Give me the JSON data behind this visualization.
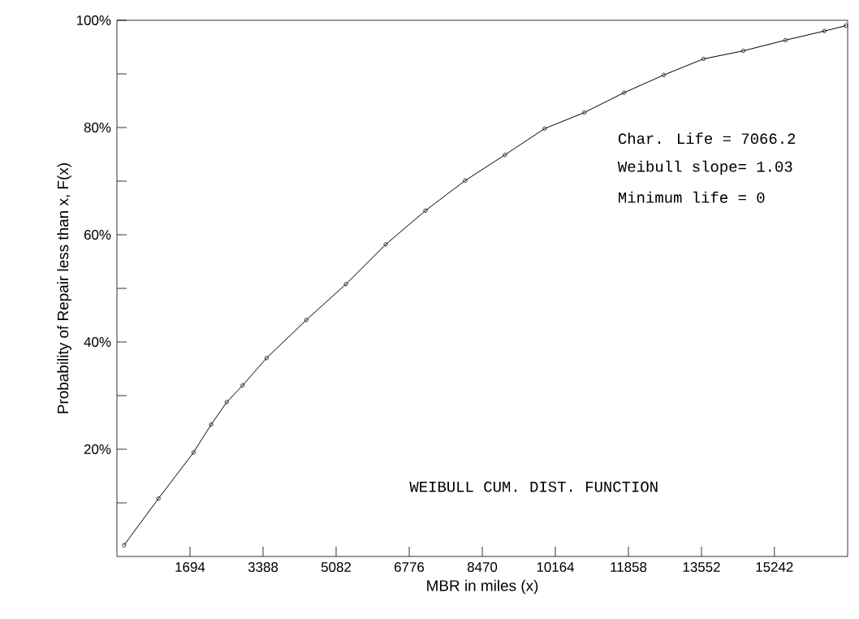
{
  "chart_data": {
    "type": "line",
    "xlabel": "MBR in miles  (x)",
    "ylabel": "Probability of Repair  less than x, F(x)",
    "annotations": [
      "Char. Life   =  7066.2",
      "Weibull slope=  1.03",
      "Minimum life =  0",
      "WEIBULL CUM. DIST.  FUNCTION"
    ],
    "x": [
      165,
      963,
      1777,
      2183,
      2548,
      2914,
      3469,
      4390,
      5310,
      6232,
      7152,
      8072,
      8995,
      9915,
      10836,
      11757,
      12677,
      13599,
      14519,
      15500,
      16400,
      16900
    ],
    "series": [
      {
        "color": "#000000",
        "values": [
          2.1,
          10.8,
          19.4,
          24.6,
          28.8,
          31.9,
          37.0,
          44.1,
          50.8,
          58.2,
          64.5,
          70.1,
          74.9,
          79.8,
          82.8,
          86.5,
          89.8,
          92.8,
          94.3,
          96.3,
          98.0,
          99.0
        ]
      }
    ],
    "xlim": [
      0,
      16940
    ],
    "ylim": [
      0,
      100
    ],
    "xticks": [
      1694,
      3388,
      5082,
      6776,
      8470,
      10164,
      11858,
      13552,
      15242
    ],
    "yticks": [
      {
        "value": 10,
        "label": null
      },
      {
        "value": 20,
        "label": "20%"
      },
      {
        "value": 30,
        "label": null
      },
      {
        "value": 40,
        "label": "40%"
      },
      {
        "value": 50,
        "label": null
      },
      {
        "value": 60,
        "label": "60%"
      },
      {
        "value": 70,
        "label": null
      },
      {
        "value": 80,
        "label": "80%"
      },
      {
        "value": 90,
        "label": null
      },
      {
        "value": 100,
        "label": "100%"
      }
    ],
    "marker": "circle",
    "line_style": "solid"
  }
}
